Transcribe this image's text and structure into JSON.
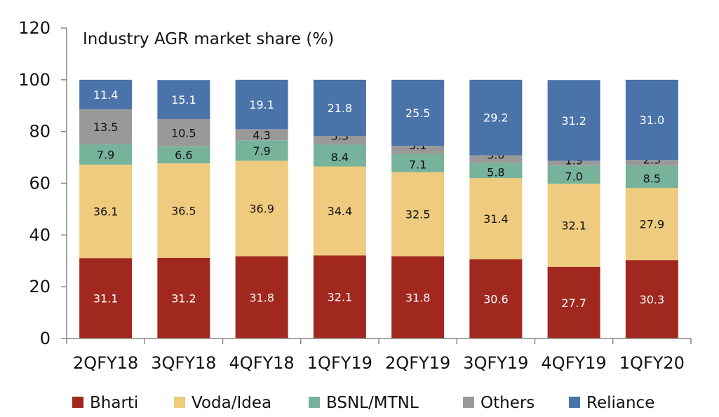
{
  "chart_data": {
    "type": "bar",
    "stacked": true,
    "title": "Industry AGR market share (%)",
    "xlabel": "",
    "ylabel": "",
    "ylim": [
      0,
      120
    ],
    "yticks": [
      0,
      20,
      40,
      60,
      80,
      100,
      120
    ],
    "grid": false,
    "legend_position": "bottom",
    "categories": [
      "2QFY18",
      "3QFY18",
      "4QFY18",
      "1QFY19",
      "2QFY19",
      "3QFY19",
      "4QFY19",
      "1QFY20"
    ],
    "series": [
      {
        "name": "Bharti",
        "color": "#a0281f",
        "label_color": "#ffffff",
        "values": [
          31.1,
          31.2,
          31.8,
          32.1,
          31.8,
          30.6,
          27.7,
          30.3
        ]
      },
      {
        "name": "Voda/Idea",
        "color": "#eecb7e",
        "label_color": "#111111",
        "values": [
          36.1,
          36.5,
          36.9,
          34.4,
          32.5,
          31.4,
          32.1,
          27.9
        ]
      },
      {
        "name": "BSNL/MTNL",
        "color": "#77b29a",
        "label_color": "#111111",
        "values": [
          7.9,
          6.6,
          7.9,
          8.4,
          7.1,
          5.8,
          7.0,
          8.5
        ]
      },
      {
        "name": "Others",
        "color": "#999999",
        "label_color": "#111111",
        "values": [
          13.5,
          10.5,
          4.3,
          3.3,
          3.1,
          3.0,
          1.9,
          2.3
        ]
      },
      {
        "name": "Reliance",
        "color": "#4a73aa",
        "label_color": "#ffffff",
        "values": [
          11.4,
          15.1,
          19.1,
          21.8,
          25.5,
          29.2,
          31.2,
          31.0
        ]
      }
    ]
  }
}
